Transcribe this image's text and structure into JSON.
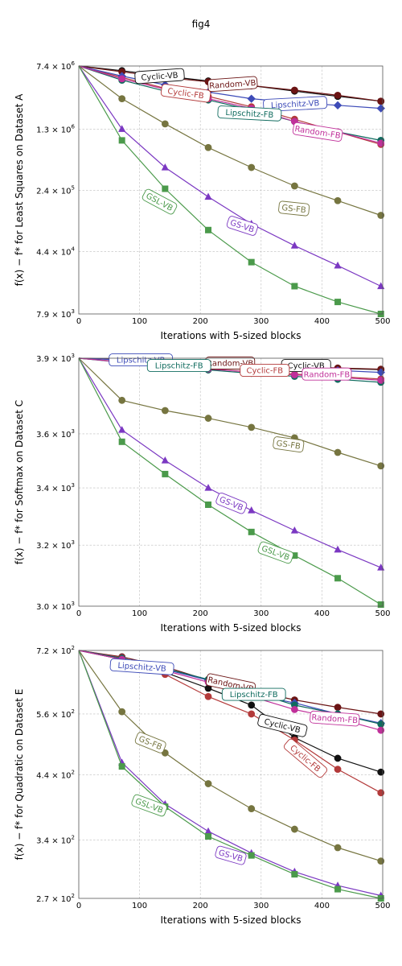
{
  "figure": {
    "title": "fig4"
  },
  "series_styles": {
    "Cyclic-VB": {
      "color": "#111111",
      "marker": "circle"
    },
    "Random-VB": {
      "color": "#6b1414",
      "marker": "circle"
    },
    "Cyclic-FB": {
      "color": "#b33a3a",
      "marker": "circle"
    },
    "Lipschitz-VB": {
      "color": "#3d4bb8",
      "marker": "diamond"
    },
    "Lipschitz-FB": {
      "color": "#0f6b5e",
      "marker": "circle"
    },
    "Random-FB": {
      "color": "#c0309a",
      "marker": "circle"
    },
    "GS-FB": {
      "color": "#767540",
      "marker": "circle"
    },
    "GS-VB": {
      "color": "#7b38c2",
      "marker": "triangle"
    },
    "GSL-VB": {
      "color": "#4b9a4b",
      "marker": "square"
    }
  },
  "chart_data": [
    {
      "type": "line",
      "title": "",
      "xlabel": "Iterations with 5-sized blocks",
      "ylabel": "f(x) − f* for Least Squares on Dataset A",
      "xlim": [
        0,
        500
      ],
      "ylim": [
        7900,
        7400000
      ],
      "yscale": "log",
      "grid": true,
      "xticks": [
        0,
        100,
        200,
        300,
        400,
        500
      ],
      "yticks": [
        7900,
        44000,
        240000,
        1300000,
        7400000
      ],
      "ytick_labels": [
        {
          "m": "7.9",
          "e": "3"
        },
        {
          "m": "4.4",
          "e": "4"
        },
        {
          "m": "2.4",
          "e": "5"
        },
        {
          "m": "1.3",
          "e": "6"
        },
        {
          "m": "7.4",
          "e": "6"
        }
      ],
      "x": [
        0,
        71,
        142,
        213,
        284,
        355,
        426,
        497
      ],
      "series": [
        {
          "name": "Cyclic-VB",
          "values": [
            7400000,
            6500000,
            5600000,
            4900000,
            4300000,
            3700000,
            3200000,
            2800000
          ]
        },
        {
          "name": "Random-VB",
          "values": [
            7400000,
            6300000,
            5400000,
            4800000,
            4300000,
            3800000,
            3300000,
            2800000
          ]
        },
        {
          "name": "Cyclic-FB",
          "values": [
            7400000,
            5400000,
            4000000,
            3200000,
            2400000,
            1700000,
            1200000,
            850000
          ]
        },
        {
          "name": "Lipschitz-VB",
          "values": [
            7400000,
            5600000,
            4400000,
            3600000,
            3000000,
            2700000,
            2500000,
            2300000
          ]
        },
        {
          "name": "Lipschitz-FB",
          "values": [
            7400000,
            5000000,
            3700000,
            2900000,
            2200000,
            1600000,
            1200000,
            950000
          ]
        },
        {
          "name": "Random-FB",
          "values": [
            7400000,
            5200000,
            3900000,
            3000000,
            2300000,
            1600000,
            1200000,
            880000
          ]
        },
        {
          "name": "GS-FB",
          "values": [
            7400000,
            3000000,
            1500000,
            780000,
            450000,
            270000,
            180000,
            120000
          ]
        },
        {
          "name": "GS-VB",
          "values": [
            7400000,
            1300000,
            450000,
            200000,
            95000,
            52000,
            30000,
            17000
          ]
        },
        {
          "name": "GSL-VB",
          "values": [
            7400000,
            950000,
            250000,
            80000,
            33000,
            17000,
            11000,
            7900
          ]
        }
      ],
      "labels": [
        {
          "series": "Cyclic-VB",
          "x": 133,
          "y": 5600000,
          "angle": -4
        },
        {
          "series": "Random-VB",
          "x": 253,
          "y": 4500000,
          "angle": -4
        },
        {
          "series": "Cyclic-FB",
          "x": 176,
          "y": 3500000,
          "angle": 8
        },
        {
          "series": "Lipschitz-VB",
          "x": 356,
          "y": 2600000,
          "angle": -3
        },
        {
          "series": "Lipschitz-FB",
          "x": 281,
          "y": 2000000,
          "angle": 3
        },
        {
          "series": "Random-FB",
          "x": 393,
          "y": 1200000,
          "angle": 9
        },
        {
          "series": "GS-FB",
          "x": 354,
          "y": 145000,
          "angle": 6
        },
        {
          "series": "GS-VB",
          "x": 269,
          "y": 90000,
          "angle": 18
        },
        {
          "series": "GSL-VB",
          "x": 133,
          "y": 175000,
          "angle": 28
        }
      ]
    },
    {
      "type": "line",
      "title": "",
      "xlabel": "Iterations with 5-sized blocks",
      "ylabel": "f(x) − f* for Softmax on Dataset C",
      "xlim": [
        0,
        500
      ],
      "ylim": [
        3000,
        3900
      ],
      "yscale": "log",
      "grid": true,
      "xticks": [
        0,
        100,
        200,
        300,
        400,
        500
      ],
      "yticks": [
        3000,
        3200,
        3400,
        3600,
        3900
      ],
      "ytick_labels": [
        {
          "m": "3.0",
          "e": "3"
        },
        {
          "m": "3.2",
          "e": "3"
        },
        {
          "m": "3.4",
          "e": "3"
        },
        {
          "m": "3.6",
          "e": "3"
        },
        {
          "m": "3.9",
          "e": "3"
        }
      ],
      "x": [
        0,
        71,
        142,
        213,
        284,
        355,
        426,
        497
      ],
      "series": [
        {
          "name": "Cyclic-VB",
          "values": [
            3900,
            3895,
            3888,
            3880,
            3870,
            3865,
            3858,
            3853
          ]
        },
        {
          "name": "Random-VB",
          "values": [
            3900,
            3895,
            3888,
            3880,
            3872,
            3866,
            3860,
            3855
          ]
        },
        {
          "name": "Cyclic-FB",
          "values": [
            3900,
            3885,
            3870,
            3855,
            3845,
            3835,
            3825,
            3815
          ]
        },
        {
          "name": "Lipschitz-VB",
          "values": [
            3900,
            3893,
            3884,
            3875,
            3866,
            3858,
            3850,
            3842
          ]
        },
        {
          "name": "Lipschitz-FB",
          "values": [
            3900,
            3883,
            3867,
            3852,
            3838,
            3826,
            3814,
            3802
          ]
        },
        {
          "name": "Random-FB",
          "values": [
            3900,
            3884,
            3869,
            3856,
            3843,
            3832,
            3822,
            3810
          ]
        },
        {
          "name": "GS-FB",
          "values": [
            3900,
            3730,
            3690,
            3660,
            3625,
            3585,
            3530,
            3480
          ]
        },
        {
          "name": "GS-VB",
          "values": [
            3900,
            3615,
            3500,
            3400,
            3320,
            3250,
            3185,
            3125
          ]
        },
        {
          "name": "GSL-VB",
          "values": [
            3900,
            3570,
            3450,
            3340,
            3245,
            3165,
            3090,
            3005
          ]
        }
      ],
      "labels": [
        {
          "series": "Lipschitz-VB",
          "x": 102,
          "y": 3893,
          "angle": 0
        },
        {
          "series": "Random-VB",
          "x": 249,
          "y": 3880,
          "angle": 0
        },
        {
          "series": "Cyclic-VB",
          "x": 374,
          "y": 3870,
          "angle": 0
        },
        {
          "series": "Lipschitz-FB",
          "x": 165,
          "y": 3870,
          "angle": 0
        },
        {
          "series": "Cyclic-FB",
          "x": 306,
          "y": 3850,
          "angle": 0
        },
        {
          "series": "Random-FB",
          "x": 408,
          "y": 3835,
          "angle": 0
        },
        {
          "series": "GS-FB",
          "x": 345,
          "y": 3560,
          "angle": 8
        },
        {
          "series": "GS-VB",
          "x": 251,
          "y": 3345,
          "angle": 22
        },
        {
          "series": "GSL-VB",
          "x": 324,
          "y": 3175,
          "angle": 20
        }
      ]
    },
    {
      "type": "line",
      "title": "",
      "xlabel": "Iterations with 5-sized blocks",
      "ylabel": "f(x) − f* for Quadratic on Dataset E",
      "xlim": [
        0,
        500
      ],
      "ylim": [
        270,
        720
      ],
      "yscale": "log",
      "grid": true,
      "xticks": [
        0,
        100,
        200,
        300,
        400,
        500
      ],
      "yticks": [
        270,
        340,
        440,
        560,
        720
      ],
      "ytick_labels": [
        {
          "m": "2.7",
          "e": "2"
        },
        {
          "m": "3.4",
          "e": "2"
        },
        {
          "m": "4.4",
          "e": "2"
        },
        {
          "m": "5.6",
          "e": "2"
        },
        {
          "m": "7.2",
          "e": "2"
        }
      ],
      "x": [
        0,
        71,
        142,
        213,
        284,
        355,
        426,
        497
      ],
      "series": [
        {
          "name": "Cyclic-VB",
          "values": [
            720,
            695,
            660,
            620,
            580,
            510,
            470,
            445
          ]
        },
        {
          "name": "Random-VB",
          "values": [
            720,
            702,
            675,
            640,
            615,
            592,
            575,
            560
          ]
        },
        {
          "name": "Cyclic-FB",
          "values": [
            720,
            700,
            655,
            600,
            560,
            505,
            450,
            410
          ]
        },
        {
          "name": "Lipschitz-VB",
          "values": [
            720,
            698,
            668,
            640,
            605,
            585,
            560,
            540
          ]
        },
        {
          "name": "Lipschitz-FB",
          "values": [
            720,
            698,
            670,
            642,
            612,
            580,
            560,
            538
          ]
        },
        {
          "name": "Random-FB",
          "values": [
            720,
            695,
            665,
            635,
            600,
            570,
            550,
            525
          ]
        },
        {
          "name": "GS-FB",
          "values": [
            720,
            565,
            480,
            425,
            385,
            355,
            330,
            313
          ]
        },
        {
          "name": "GS-VB",
          "values": [
            720,
            462,
            392,
            352,
            323,
            300,
            284,
            273
          ]
        },
        {
          "name": "GSL-VB",
          "values": [
            720,
            455,
            388,
            345,
            320,
            297,
            280,
            270
          ]
        }
      ],
      "labels": [
        {
          "series": "Lipschitz-VB",
          "x": 104,
          "y": 675,
          "angle": 4
        },
        {
          "series": "Random-VB",
          "x": 250,
          "y": 630,
          "angle": 12
        },
        {
          "series": "Lipschitz-FB",
          "x": 288,
          "y": 605,
          "angle": 0
        },
        {
          "series": "Cyclic-VB",
          "x": 335,
          "y": 535,
          "angle": 14
        },
        {
          "series": "Random-FB",
          "x": 421,
          "y": 550,
          "angle": 4
        },
        {
          "series": "Cyclic-FB",
          "x": 373,
          "y": 470,
          "angle": 40
        },
        {
          "series": "GS-FB",
          "x": 118,
          "y": 500,
          "angle": 22
        },
        {
          "series": "GS-VB",
          "x": 250,
          "y": 320,
          "angle": 16
        },
        {
          "series": "GSL-VB",
          "x": 116,
          "y": 390,
          "angle": 20
        }
      ]
    }
  ]
}
